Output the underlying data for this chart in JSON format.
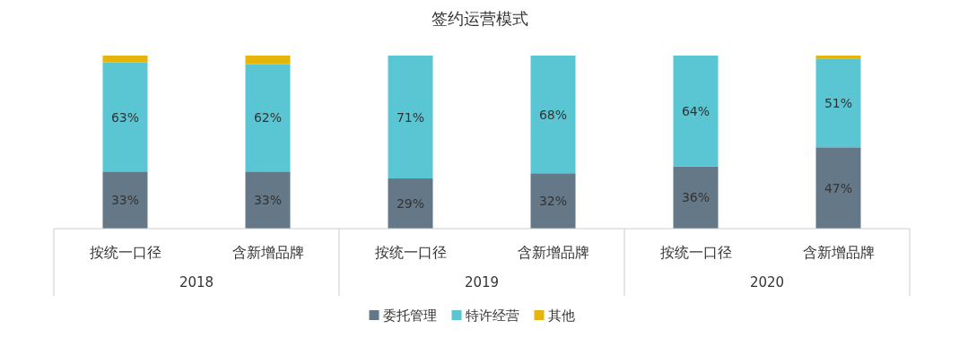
{
  "chart_data": {
    "type": "bar",
    "stacked": true,
    "title": "签约运营模式",
    "categories": [
      "按统一口径",
      "含新增品牌",
      "按统一口径",
      "含新增品牌",
      "按统一口径",
      "含新增品牌"
    ],
    "annotations": [
      "2018",
      "2019",
      "2020"
    ],
    "series": [
      {
        "name": "委托管理",
        "color": "#647888",
        "values": [
          33,
          33,
          29,
          32,
          36,
          47
        ],
        "value_labels": [
          "33%",
          "33%",
          "29%",
          "32%",
          "36%",
          "47%"
        ]
      },
      {
        "name": "特许经营",
        "color": "#5bc6d3",
        "values": [
          63,
          62,
          71,
          68,
          64,
          51
        ],
        "value_labels": [
          "63%",
          "62%",
          "71%",
          "68%",
          "64%",
          "51%"
        ]
      },
      {
        "name": "其他",
        "color": "#e5b50b",
        "values": [
          4,
          5,
          0,
          0,
          0,
          2
        ]
      }
    ],
    "legend": "bottom"
  }
}
